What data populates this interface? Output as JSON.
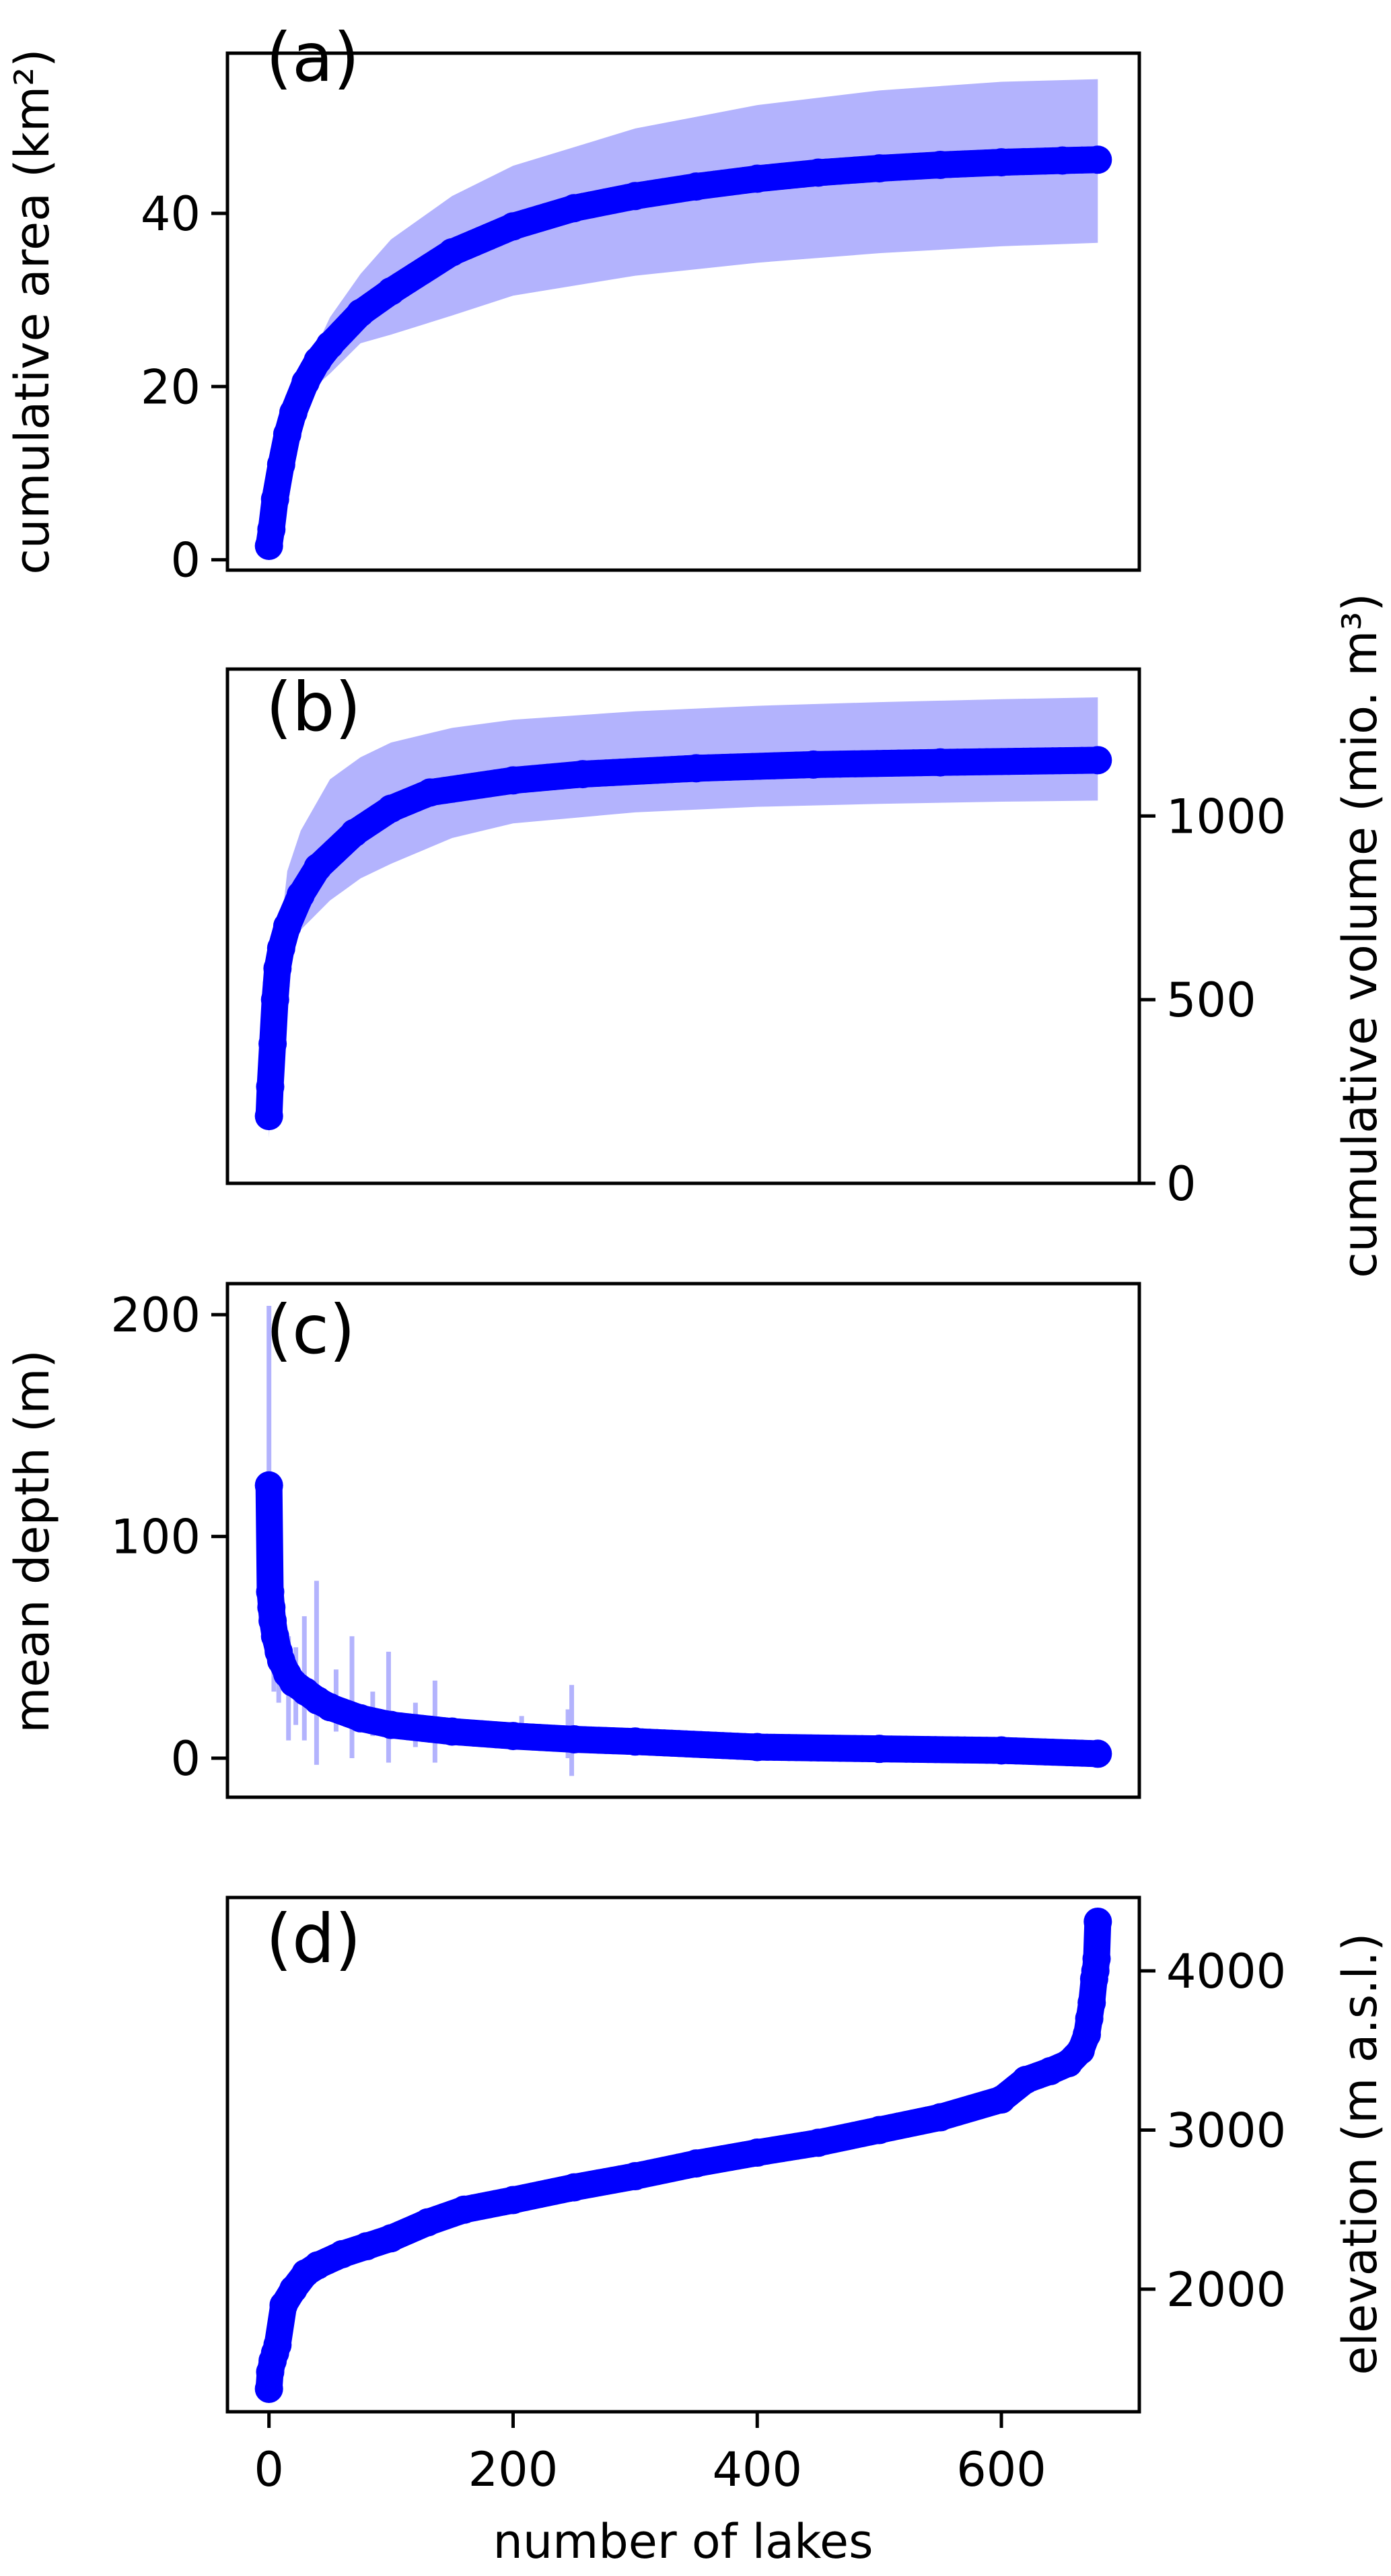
{
  "colors": {
    "marker": "#0000ff",
    "band": "#b3b3fd",
    "frame": "#000000"
  },
  "chart_data": [
    {
      "type": "scatter",
      "panel_label": "(a)",
      "ylabel": "cumulative area (km²)",
      "yaxis_side": "left",
      "xlim": [
        -34,
        713
      ],
      "ylim": [
        -1.2,
        58.5
      ],
      "yticks": [
        0,
        20,
        40
      ],
      "ytick_labels": [
        "0",
        "20",
        "40"
      ],
      "x": [
        0,
        2,
        5,
        10,
        15,
        20,
        30,
        40,
        50,
        75,
        100,
        150,
        200,
        250,
        300,
        350,
        400,
        450,
        500,
        550,
        600,
        650,
        679
      ],
      "y": [
        1.6,
        3.5,
        7,
        11,
        14.5,
        17,
        20.5,
        23,
        24.8,
        28.5,
        31,
        35.5,
        38.5,
        40.6,
        42,
        43.1,
        44,
        44.7,
        45.2,
        45.6,
        45.9,
        46.1,
        46.2
      ],
      "band": {
        "x": [
          0,
          20,
          30,
          50,
          75,
          100,
          150,
          200,
          300,
          400,
          500,
          600,
          679
        ],
        "upper": [
          1.6,
          18,
          22,
          28,
          33,
          37,
          42,
          45.5,
          49.8,
          52.5,
          54.2,
          55.2,
          55.5
        ],
        "lower": [
          1.6,
          16,
          19,
          21.5,
          25,
          26,
          28.2,
          30.5,
          32.8,
          34.3,
          35.4,
          36.2,
          36.6
        ]
      }
    },
    {
      "type": "scatter",
      "panel_label": "(b)",
      "ylabel": "cumulative volume (mio. m³)",
      "yaxis_side": "right",
      "xlim": [
        -34,
        713
      ],
      "ylim": [
        0,
        1400
      ],
      "yticks": [
        0,
        500,
        1000
      ],
      "ytick_labels": [
        "0",
        "500",
        "1000"
      ],
      "x": [
        0,
        1,
        3,
        5,
        7,
        10,
        15,
        26,
        40,
        70,
        100,
        132,
        200,
        257,
        350,
        446,
        550,
        679
      ],
      "y": [
        183,
        263,
        380,
        500,
        585,
        640,
        700,
        785,
        860,
        954,
        1020,
        1064,
        1097,
        1114,
        1130,
        1140,
        1146,
        1152
      ],
      "band": {
        "x": [
          0,
          5,
          15,
          26,
          50,
          75,
          100,
          150,
          200,
          300,
          400,
          500,
          600,
          679
        ],
        "upper": [
          183,
          550,
          850,
          960,
          1100,
          1160,
          1200,
          1240,
          1262,
          1285,
          1300,
          1310,
          1318,
          1323
        ],
        "lower": [
          123,
          450,
          600,
          690,
          770,
          830,
          870,
          940,
          980,
          1010,
          1025,
          1033,
          1039,
          1042
        ]
      }
    },
    {
      "type": "scatter",
      "panel_label": "(c)",
      "ylabel": "mean depth (m)",
      "yaxis_side": "left",
      "xlim": [
        -34,
        713
      ],
      "ylim": [
        -17.6,
        214
      ],
      "yticks": [
        0,
        100,
        200
      ],
      "ytick_labels": [
        "0",
        "100",
        "200"
      ],
      "x": [
        0,
        1,
        2,
        3,
        5,
        8,
        10,
        15,
        20,
        30,
        40,
        50,
        75,
        100,
        150,
        200,
        250,
        300,
        400,
        500,
        600,
        679
      ],
      "y": [
        123,
        75,
        68,
        62,
        55,
        48,
        44,
        38,
        34,
        30,
        26,
        23,
        18,
        15,
        12,
        10,
        8.5,
        7.5,
        5,
        4.2,
        3.5,
        2
      ],
      "error_bars": [
        {
          "x": 0,
          "low": 100,
          "high": 204
        },
        {
          "x": 4,
          "low": 30,
          "high": 97
        },
        {
          "x": 8,
          "low": 25,
          "high": 87
        },
        {
          "x": 16,
          "low": 8,
          "high": 55
        },
        {
          "x": 22,
          "low": 15,
          "high": 50
        },
        {
          "x": 29,
          "low": 8,
          "high": 64
        },
        {
          "x": 39,
          "low": -3,
          "high": 80
        },
        {
          "x": 55,
          "low": 12,
          "high": 40
        },
        {
          "x": 68,
          "low": 0,
          "high": 55
        },
        {
          "x": 85,
          "low": 10,
          "high": 30
        },
        {
          "x": 98,
          "low": -2,
          "high": 48
        },
        {
          "x": 120,
          "low": 5,
          "high": 25
        },
        {
          "x": 136,
          "low": -2,
          "high": 35
        },
        {
          "x": 207,
          "low": 5,
          "high": 19
        },
        {
          "x": 245,
          "low": 0,
          "high": 22
        },
        {
          "x": 248,
          "low": -8,
          "high": 33
        }
      ]
    },
    {
      "type": "scatter",
      "panel_label": "(d)",
      "ylabel": "elevation (m a.s.l.)",
      "xlabel": "number of lakes",
      "yaxis_side": "right",
      "xlim": [
        -34,
        713
      ],
      "ylim": [
        1230,
        4461
      ],
      "yticks": [
        2000,
        3000,
        4000
      ],
      "ytick_labels": [
        "2000",
        "3000",
        "4000"
      ],
      "xticks": [
        0,
        200,
        400,
        600
      ],
      "xtick_labels": [
        "0",
        "200",
        "400",
        "600"
      ],
      "x": [
        0,
        1,
        3,
        5,
        7,
        12,
        20,
        30,
        40,
        60,
        80,
        100,
        130,
        160,
        200,
        250,
        300,
        350,
        400,
        450,
        500,
        550,
        600,
        620,
        640,
        655,
        665,
        670,
        672,
        674,
        676,
        677,
        678,
        679
      ],
      "y": [
        1374,
        1480,
        1550,
        1600,
        1650,
        1900,
        2000,
        2100,
        2150,
        2220,
        2270,
        2320,
        2420,
        2500,
        2560,
        2640,
        2710,
        2790,
        2858,
        2920,
        3000,
        3080,
        3192,
        3315,
        3370,
        3420,
        3500,
        3600,
        3700,
        3800,
        3950,
        4000,
        4076,
        4309
      ]
    }
  ]
}
